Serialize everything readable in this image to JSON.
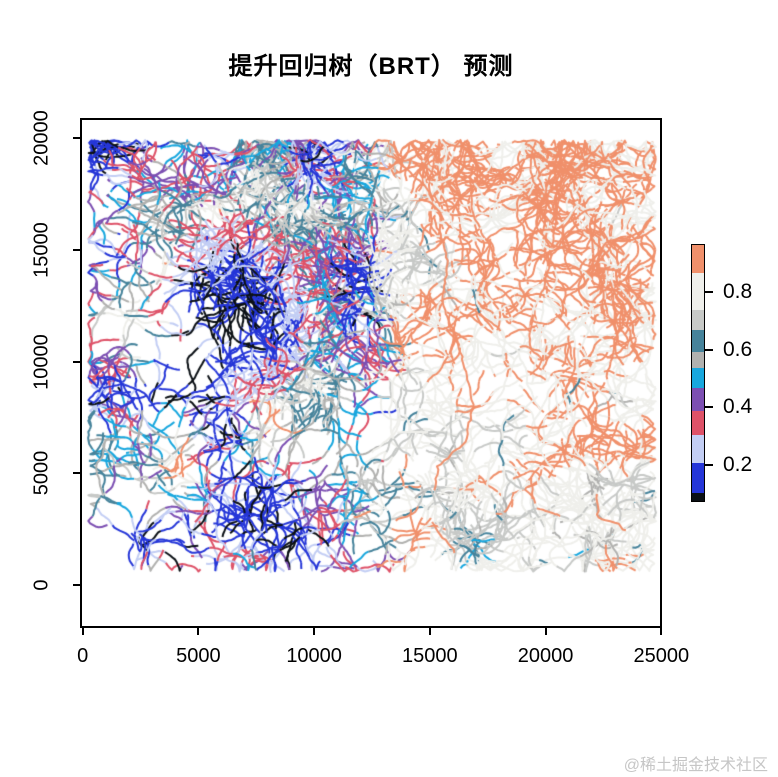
{
  "page": {
    "watermark": "@稀土掘金技术社区",
    "background": "#ffffff"
  },
  "chart_data": {
    "type": "line",
    "subtype": "stream-network-prediction-map",
    "title": "提升回归树（BRT） 预测",
    "xlabel": "",
    "ylabel": "",
    "xlim": [
      0,
      25000
    ],
    "ylim": [
      0,
      20000
    ],
    "grid": false,
    "x_ticks": [
      {
        "v": 0,
        "label": "0"
      },
      {
        "v": 5000,
        "label": "5000"
      },
      {
        "v": 10000,
        "label": "10000"
      },
      {
        "v": 15000,
        "label": "15000"
      },
      {
        "v": 20000,
        "label": "20000"
      },
      {
        "v": 25000,
        "label": "25000"
      }
    ],
    "y_ticks": [
      {
        "v": 0,
        "label": "0"
      },
      {
        "v": 5000,
        "label": "5000"
      },
      {
        "v": 10000,
        "label": "10000"
      },
      {
        "v": 15000,
        "label": "15000"
      },
      {
        "v": 20000,
        "label": "20000"
      }
    ],
    "description": "Dendritic stream network colored by BRT predicted probability: high values (salmon/white ~0.75-0.96) in the north-east and east, mixed low values (blue/lavender/red/purple/cyan ~0.1-0.55) in the west with a deep-blue and near-black cluster around x=6000, y=12500.",
    "colorbar": {
      "position": "right",
      "value_range": [
        0.074,
        0.964
      ],
      "ticks": [
        {
          "v": 0.8,
          "label": "0.8"
        },
        {
          "v": 0.6,
          "label": "0.6"
        },
        {
          "v": 0.4,
          "label": "0.4"
        },
        {
          "v": 0.2,
          "label": "0.2"
        }
      ],
      "classes": [
        {
          "min": 0.866,
          "max": 0.964,
          "color": "#F0906B",
          "name": "salmon"
        },
        {
          "min": 0.737,
          "max": 0.866,
          "color": "#EFEFEB",
          "name": "near-white"
        },
        {
          "min": 0.667,
          "max": 0.737,
          "color": "#C7C9C7",
          "name": "light-gray"
        },
        {
          "min": 0.591,
          "max": 0.667,
          "color": "#46839B",
          "name": "teal"
        },
        {
          "min": 0.535,
          "max": 0.591,
          "color": "#B1B1AF",
          "name": "gray"
        },
        {
          "min": 0.468,
          "max": 0.535,
          "color": "#18A7DE",
          "name": "cyan"
        },
        {
          "min": 0.388,
          "max": 0.468,
          "color": "#7C4FB2",
          "name": "purple"
        },
        {
          "min": 0.304,
          "max": 0.388,
          "color": "#DE5268",
          "name": "red"
        },
        {
          "min": 0.207,
          "max": 0.304,
          "color": "#C3CEF4",
          "name": "lavender"
        },
        {
          "min": 0.102,
          "max": 0.207,
          "color": "#2536D8",
          "name": "blue"
        },
        {
          "min": 0.074,
          "max": 0.102,
          "color": "#0B1015",
          "name": "black"
        }
      ]
    },
    "network": {
      "seed": 7,
      "step": 3.1,
      "line_width": 2,
      "branch_probability": 0.085,
      "turn_jitter": 0.85,
      "steps_min": 50,
      "steps_max": 180,
      "bounds": {
        "x_min": 6,
        "x_max": 574,
        "y_min": 20,
        "y_max": 452
      },
      "roots": {
        "left": 27,
        "right": 16,
        "top_right": 9
      },
      "field": {
        "right_boundary_u": 0.52,
        "left_base": 0.38,
        "right_base": 0.8,
        "blue_cluster": {
          "cx": 155,
          "cy": 190,
          "rx": 80,
          "ry": 90
        },
        "dark_core": {
          "cx": 150,
          "cy": 188,
          "rx": 46,
          "ry": 50
        },
        "salmon_zone": {
          "y_max": 212,
          "x_at_top": 316,
          "slope": 0.5
        },
        "noise_cells": [
          46,
          17
        ]
      },
      "rivers": [
        {
          "value": 0.91,
          "points": [
            [
              352,
              96
            ],
            [
              366,
              140
            ],
            [
              360,
              182
            ],
            [
              379,
              232
            ],
            [
              391,
              284
            ],
            [
              384,
              322
            ],
            [
              356,
              346
            ],
            [
              353,
              370
            ]
          ]
        },
        {
          "value": 0.91,
          "points": [
            [
              515,
              374
            ],
            [
              516,
              398
            ],
            [
              536,
              404
            ],
            [
              544,
              411
            ]
          ]
        },
        {
          "value": 0.91,
          "points": [
            [
              350,
              402
            ],
            [
              361,
              418
            ],
            [
              373,
              432
            ]
          ]
        }
      ]
    }
  }
}
